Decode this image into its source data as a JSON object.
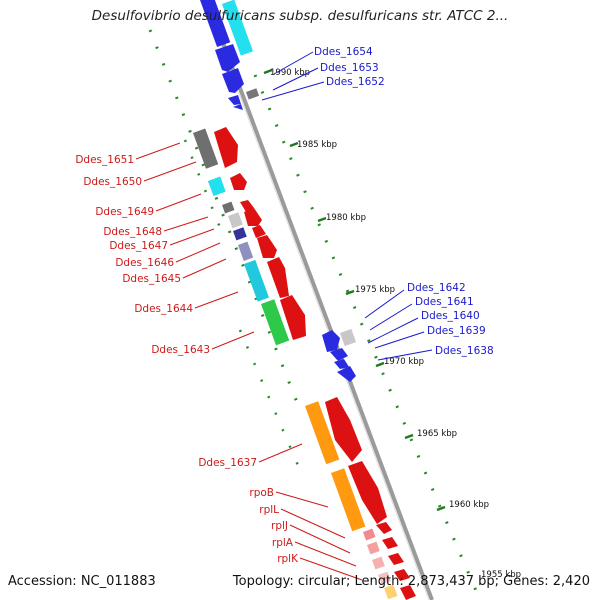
{
  "title": "Desulfovibrio desulfuricans subsp. desulfuricans str. ATCC 2...",
  "footer": {
    "accession": "Accession: NC_011883",
    "summary": "Topology: circular; Length: 2,873,437 bp; Genes: 2,420"
  },
  "colors": {
    "backbone": "#9a9a9a",
    "tick": "#1f7a1f",
    "reverse_label": "#1a1acc",
    "forward_label": "#cc1a1a"
  },
  "scale_ticks": [
    "1990 kbp",
    "1985 kbp",
    "1980 kbp",
    "1975 kbp",
    "1970 kbp",
    "1965 kbp",
    "1960 kbp",
    "1955 kbp"
  ],
  "labels_top_right": [
    "Ddes_1654",
    "Ddes_1653",
    "Ddes_1652"
  ],
  "labels_left": [
    "Ddes_1651",
    "Ddes_1650",
    "Ddes_1649",
    "Ddes_1648",
    "Ddes_1647",
    "Ddes_1646",
    "Ddes_1645",
    "Ddes_1644",
    "Ddes_1643"
  ],
  "labels_mid_right": [
    "Ddes_1642",
    "Ddes_1641",
    "Ddes_1640",
    "Ddes_1639",
    "Ddes_1638"
  ],
  "labels_bottom_left": [
    "Ddes_1637",
    "rpoB",
    "rplL",
    "rplJ",
    "rplA",
    "rplK"
  ]
}
